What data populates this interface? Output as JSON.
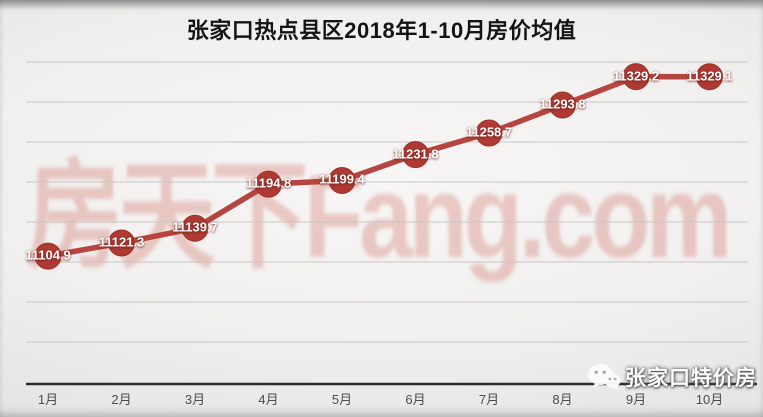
{
  "title": "张家口热点县区2018年1-10月房价均值",
  "watermark": {
    "text": "房天下Fang.com",
    "color": "#cd5f55"
  },
  "brand": {
    "text": "张家口特价房",
    "icon": "wechat-icon"
  },
  "chart_data": {
    "type": "line",
    "title": "张家口热点县区2018年1-10月房价均值",
    "categories": [
      "1月",
      "2月",
      "3月",
      "4月",
      "5月",
      "6月",
      "7月",
      "8月",
      "9月",
      "10月"
    ],
    "series": [
      {
        "name": "房价均值",
        "values": [
          11104.9,
          11121.3,
          11139.7,
          11194.8,
          11199.4,
          11231.8,
          11258.7,
          11293.8,
          11329.2,
          11329.1
        ]
      }
    ],
    "point_labels": [
      "11104.9",
      "11121.3",
      "11139.7",
      "11194.8",
      "11199.4",
      "11231.8",
      "11258.7",
      "11293.8",
      "11329.2",
      "11329.1"
    ],
    "xlabel": "",
    "ylabel": "",
    "ylim": [
      10950,
      11400
    ],
    "grid": true,
    "legend": "none",
    "colors": {
      "line": "#b5453e",
      "marker": "#ae3a33",
      "marker_edge": "#9e322b",
      "label_text": "#ffffff",
      "gridline": "#c9c7c6",
      "axis": "#2b2b2b",
      "tick_text": "#4d4d4d"
    }
  }
}
